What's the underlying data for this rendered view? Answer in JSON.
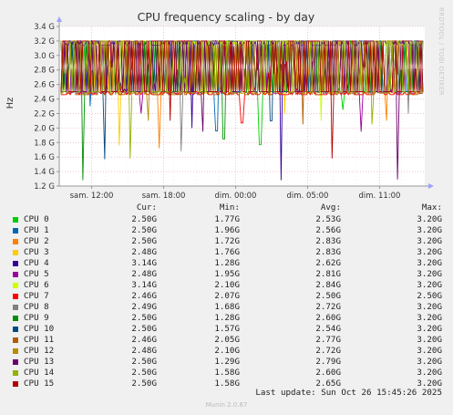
{
  "watermark": "RRDTOOL / TOBI OETIKER",
  "footer": {
    "last_update": "Last update: Sun Oct 26 15:45:26 2025",
    "version": "Munin 2.0.67"
  },
  "legend": {
    "headers": {
      "cur": "Cur:",
      "min": "Min:",
      "avg": "Avg:",
      "max": "Max:"
    },
    "rows": [
      {
        "name": "CPU 0",
        "color": "#00cc00",
        "cur": "2.50G",
        "min": "1.77G",
        "avg": "2.53G",
        "max": "3.20G"
      },
      {
        "name": "CPU 1",
        "color": "#0066b3",
        "cur": "2.50G",
        "min": "1.96G",
        "avg": "2.56G",
        "max": "3.20G"
      },
      {
        "name": "CPU 2",
        "color": "#ff8000",
        "cur": "2.50G",
        "min": "1.72G",
        "avg": "2.83G",
        "max": "3.20G"
      },
      {
        "name": "CPU 3",
        "color": "#ffcc00",
        "cur": "2.48G",
        "min": "1.76G",
        "avg": "2.83G",
        "max": "3.20G"
      },
      {
        "name": "CPU 4",
        "color": "#330099",
        "cur": "3.14G",
        "min": "1.28G",
        "avg": "2.62G",
        "max": "3.20G"
      },
      {
        "name": "CPU 5",
        "color": "#990099",
        "cur": "2.48G",
        "min": "1.95G",
        "avg": "2.81G",
        "max": "3.20G"
      },
      {
        "name": "CPU 6",
        "color": "#ccff00",
        "cur": "3.14G",
        "min": "2.10G",
        "avg": "2.84G",
        "max": "3.20G"
      },
      {
        "name": "CPU 7",
        "color": "#ff0000",
        "cur": "2.46G",
        "min": "2.07G",
        "avg": "2.50G",
        "max": "2.50G"
      },
      {
        "name": "CPU 8",
        "color": "#808080",
        "cur": "2.49G",
        "min": "1.68G",
        "avg": "2.72G",
        "max": "3.20G"
      },
      {
        "name": "CPU 9",
        "color": "#008f00",
        "cur": "2.50G",
        "min": "1.28G",
        "avg": "2.60G",
        "max": "3.20G"
      },
      {
        "name": "CPU 10",
        "color": "#00487d",
        "cur": "2.50G",
        "min": "1.57G",
        "avg": "2.54G",
        "max": "3.20G"
      },
      {
        "name": "CPU 11",
        "color": "#b35a00",
        "cur": "2.46G",
        "min": "2.05G",
        "avg": "2.77G",
        "max": "3.20G"
      },
      {
        "name": "CPU 12",
        "color": "#b38f00",
        "cur": "2.48G",
        "min": "2.10G",
        "avg": "2.72G",
        "max": "3.20G"
      },
      {
        "name": "CPU 13",
        "color": "#6b006b",
        "cur": "2.50G",
        "min": "1.29G",
        "avg": "2.79G",
        "max": "3.20G"
      },
      {
        "name": "CPU 14",
        "color": "#8fb300",
        "cur": "2.50G",
        "min": "1.58G",
        "avg": "2.60G",
        "max": "3.20G"
      },
      {
        "name": "CPU 15",
        "color": "#b30000",
        "cur": "2.50G",
        "min": "1.58G",
        "avg": "2.65G",
        "max": "3.20G"
      }
    ]
  },
  "chart_data": {
    "type": "line",
    "title": "CPU frequency scaling - by day",
    "ylabel": "Hz",
    "ylim": [
      1.2,
      3.4
    ],
    "y_ticks": [
      1.2,
      1.4,
      1.6,
      1.8,
      2.0,
      2.2,
      2.4,
      2.6,
      2.8,
      3.0,
      3.2,
      3.4
    ],
    "y_tick_labels": [
      "1.2 G",
      "1.4 G",
      "1.6 G",
      "1.8 G",
      "2.0 G",
      "2.2 G",
      "2.4 G",
      "2.6 G",
      "2.8 G",
      "3.0 G",
      "3.2 G",
      "3.4 G"
    ],
    "x_tick_labels": [
      "sam. 12:00",
      "sam. 18:00",
      "dim. 00:00",
      "dim. 05:00",
      "dim. 11:00"
    ],
    "grid": true,
    "x_samples": 200,
    "series_note_colors": "per legend.rows",
    "series": [
      {
        "name": "CPU 0",
        "baseline": 2.5,
        "high": 3.2,
        "dips": [
          [
            0.55,
            1.77
          ],
          [
            0.78,
            2.25
          ]
        ]
      },
      {
        "name": "CPU 1",
        "baseline": 2.5,
        "high": 3.2,
        "dips": [
          [
            0.43,
            1.96
          ],
          [
            0.08,
            2.3
          ]
        ]
      },
      {
        "name": "CPU 2",
        "baseline": 2.5,
        "high": 3.2,
        "dips": [
          [
            0.27,
            1.72
          ],
          [
            0.9,
            2.1
          ]
        ]
      },
      {
        "name": "CPU 3",
        "baseline": 2.48,
        "high": 3.2,
        "dips": [
          [
            0.16,
            1.76
          ],
          [
            0.62,
            2.2
          ]
        ]
      },
      {
        "name": "CPU 4",
        "baseline": 3.14,
        "high": 3.2,
        "dips": [
          [
            0.61,
            1.28
          ],
          [
            0.36,
            2.0
          ]
        ]
      },
      {
        "name": "CPU 5",
        "baseline": 2.48,
        "high": 3.2,
        "dips": [
          [
            0.83,
            1.95
          ],
          [
            0.22,
            2.2
          ]
        ]
      },
      {
        "name": "CPU 6",
        "baseline": 3.14,
        "high": 3.2,
        "dips": [
          [
            0.72,
            2.1
          ]
        ]
      },
      {
        "name": "CPU 7",
        "baseline": 2.46,
        "high": 2.5,
        "dips": [
          [
            0.5,
            2.07
          ]
        ]
      },
      {
        "name": "CPU 8",
        "baseline": 2.49,
        "high": 3.2,
        "dips": [
          [
            0.33,
            1.68
          ],
          [
            0.96,
            2.2
          ]
        ]
      },
      {
        "name": "CPU 9",
        "baseline": 2.5,
        "high": 3.2,
        "dips": [
          [
            0.06,
            1.28
          ],
          [
            0.45,
            1.85
          ]
        ]
      },
      {
        "name": "CPU 10",
        "baseline": 2.5,
        "high": 3.2,
        "dips": [
          [
            0.12,
            1.57
          ],
          [
            0.58,
            2.1
          ]
        ]
      },
      {
        "name": "CPU 11",
        "baseline": 2.46,
        "high": 3.2,
        "dips": [
          [
            0.67,
            2.05
          ]
        ]
      },
      {
        "name": "CPU 12",
        "baseline": 2.48,
        "high": 3.2,
        "dips": [
          [
            0.24,
            2.1
          ]
        ]
      },
      {
        "name": "CPU 13",
        "baseline": 2.5,
        "high": 3.2,
        "dips": [
          [
            0.93,
            1.29
          ],
          [
            0.39,
            1.95
          ]
        ]
      },
      {
        "name": "CPU 14",
        "baseline": 2.5,
        "high": 3.2,
        "dips": [
          [
            0.19,
            1.58
          ],
          [
            0.86,
            2.05
          ]
        ]
      },
      {
        "name": "CPU 15",
        "baseline": 2.5,
        "high": 3.2,
        "dips": [
          [
            0.75,
            1.58
          ],
          [
            0.3,
            2.1
          ]
        ]
      }
    ]
  }
}
